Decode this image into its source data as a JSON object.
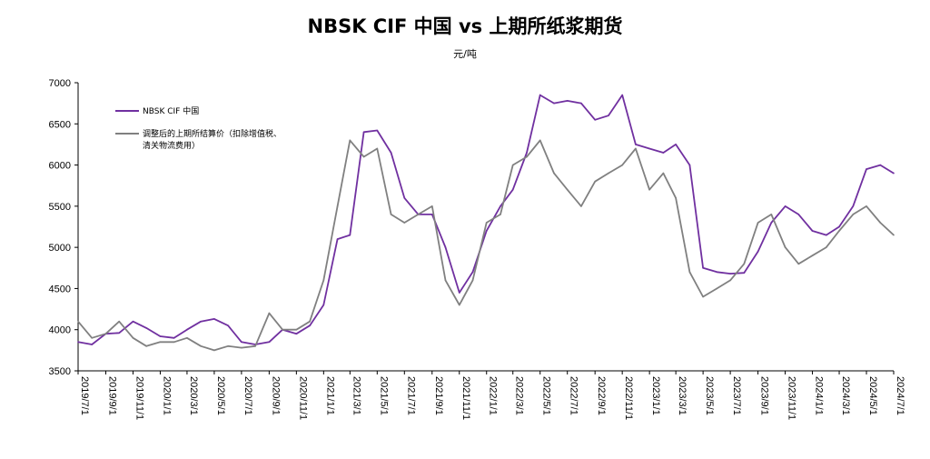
{
  "chart_data": {
    "type": "line",
    "title": "NBSK CIF 中国 vs 上期所纸浆期货",
    "unit": "元/吨",
    "ylim": [
      3500,
      7000
    ],
    "y_ticks": [
      "3500",
      "4000",
      "4500",
      "5000",
      "5500",
      "6000",
      "6500",
      "7000"
    ],
    "x_ticks": [
      "2019/7/1",
      "2019/9/1",
      "2019/11/1",
      "2020/1/1",
      "2020/3/1",
      "2020/5/1",
      "2020/7/1",
      "2020/9/1",
      "2020/11/1",
      "2021/1/1",
      "2021/3/1",
      "2021/5/1",
      "2021/7/1",
      "2021/9/1",
      "2021/11/1",
      "2022/1/1",
      "2022/3/1",
      "2022/5/1",
      "2022/7/1",
      "2022/9/1",
      "2022/11/1",
      "2023/1/1",
      "2023/3/1",
      "2023/5/1",
      "2023/7/1",
      "2023/9/1",
      "2023/11/1",
      "2024/1/1",
      "2024/3/1",
      "2024/5/1",
      "2024/7/1"
    ],
    "legend": {
      "placement": "top-left"
    },
    "series": [
      {
        "name": "NBSK CIF 中国",
        "color": "#7030A0",
        "x": [
          "2019/7/1",
          "2019/8/1",
          "2019/9/1",
          "2019/10/1",
          "2019/11/1",
          "2019/12/1",
          "2020/1/1",
          "2020/2/1",
          "2020/3/1",
          "2020/4/1",
          "2020/5/1",
          "2020/6/1",
          "2020/7/1",
          "2020/8/1",
          "2020/9/1",
          "2020/10/1",
          "2020/11/1",
          "2020/12/1",
          "2021/1/1",
          "2021/2/1",
          "2021/3/1",
          "2021/4/1",
          "2021/5/1",
          "2021/6/1",
          "2021/7/1",
          "2021/8/1",
          "2021/9/1",
          "2021/10/1",
          "2021/11/1",
          "2021/12/1",
          "2022/1/1",
          "2022/2/1",
          "2022/3/1",
          "2022/4/1",
          "2022/5/1",
          "2022/6/1",
          "2022/7/1",
          "2022/8/1",
          "2022/9/1",
          "2022/10/1",
          "2022/11/1",
          "2022/12/1",
          "2023/1/1",
          "2023/2/1",
          "2023/3/1",
          "2023/4/1",
          "2023/5/1",
          "2023/6/1",
          "2023/7/1",
          "2023/8/1",
          "2023/9/1",
          "2023/10/1",
          "2023/11/1",
          "2023/12/1",
          "2024/1/1",
          "2024/2/1",
          "2024/3/1",
          "2024/4/1",
          "2024/5/1",
          "2024/6/1",
          "2024/7/1"
        ],
        "y": [
          3850,
          3820,
          3950,
          3960,
          4100,
          4020,
          3920,
          3900,
          4000,
          4100,
          4130,
          4050,
          3850,
          3820,
          3850,
          4000,
          3950,
          4050,
          4300,
          5100,
          5150,
          6400,
          6420,
          6150,
          5600,
          5400,
          5400,
          5000,
          4450,
          4700,
          5200,
          5500,
          5700,
          6150,
          6850,
          6750,
          6780,
          6750,
          6550,
          6600,
          6850,
          6250,
          6200,
          6150,
          6250,
          6000,
          4750,
          4700,
          4680,
          4690,
          4950,
          5300,
          5500,
          5400,
          5200,
          5150,
          5250,
          5500,
          5950,
          6000,
          5900
        ]
      },
      {
        "name": "调整后的上期所结算价（扣除增值税、清关物流费用）",
        "color": "#808080",
        "x": [
          "2019/7/1",
          "2019/8/1",
          "2019/9/1",
          "2019/10/1",
          "2019/11/1",
          "2019/12/1",
          "2020/1/1",
          "2020/2/1",
          "2020/3/1",
          "2020/4/1",
          "2020/5/1",
          "2020/6/1",
          "2020/7/1",
          "2020/8/1",
          "2020/9/1",
          "2020/10/1",
          "2020/11/1",
          "2020/12/1",
          "2021/1/1",
          "2021/2/1",
          "2021/3/1",
          "2021/4/1",
          "2021/5/1",
          "2021/6/1",
          "2021/7/1",
          "2021/8/1",
          "2021/9/1",
          "2021/10/1",
          "2021/11/1",
          "2021/12/1",
          "2022/1/1",
          "2022/2/1",
          "2022/3/1",
          "2022/4/1",
          "2022/5/1",
          "2022/6/1",
          "2022/7/1",
          "2022/8/1",
          "2022/9/1",
          "2022/10/1",
          "2022/11/1",
          "2022/12/1",
          "2023/1/1",
          "2023/2/1",
          "2023/3/1",
          "2023/4/1",
          "2023/5/1",
          "2023/6/1",
          "2023/7/1",
          "2023/8/1",
          "2023/9/1",
          "2023/10/1",
          "2023/11/1",
          "2023/12/1",
          "2024/1/1",
          "2024/2/1",
          "2024/3/1",
          "2024/4/1",
          "2024/5/1",
          "2024/6/1",
          "2024/7/1"
        ],
        "y": [
          4100,
          3900,
          3950,
          4100,
          3900,
          3800,
          3850,
          3850,
          3900,
          3800,
          3750,
          3800,
          3780,
          3800,
          4200,
          4000,
          4000,
          4100,
          4600,
          5500,
          6300,
          6100,
          6200,
          5400,
          5300,
          5400,
          5500,
          4600,
          4300,
          4600,
          5300,
          5400,
          6000,
          6100,
          6300,
          5900,
          5700,
          5500,
          5800,
          5900,
          6000,
          6200,
          5700,
          5900,
          5600,
          4700,
          4400,
          4500,
          4600,
          4800,
          5300,
          5400,
          5000,
          4800,
          4900,
          5000,
          5200,
          5400,
          5500,
          5300,
          5150
        ]
      }
    ]
  }
}
